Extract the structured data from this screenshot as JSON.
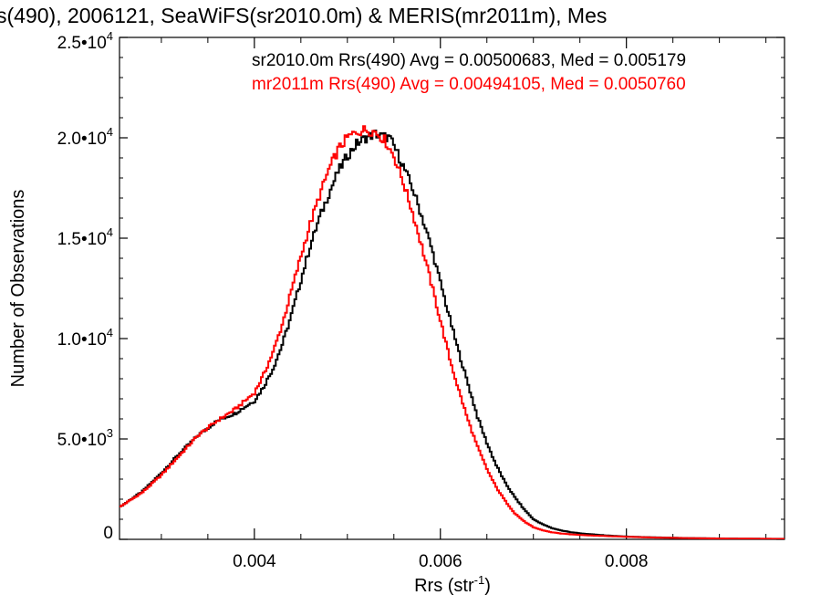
{
  "chart_data": {
    "type": "line",
    "title": "s(490), 2006121, SeaWiFS(sr2010.0m) & MERIS(mr2011m), Mes",
    "xlabel": "Rrs (str",
    "xlabel_sup": "-1",
    "xlabel_tail": ")",
    "ylabel": "Number of Observations",
    "xlim": [
      0.00255,
      0.0097
    ],
    "ylim": [
      0,
      25000
    ],
    "grid": false,
    "x_ticks": [
      {
        "value": 0.004,
        "label": "0.004"
      },
      {
        "value": 0.006,
        "label": "0.006"
      },
      {
        "value": 0.008,
        "label": "0.008"
      }
    ],
    "y_ticks": [
      {
        "value": 0,
        "mant": "0",
        "exp": ""
      },
      {
        "value": 5000,
        "mant": "5.0•10",
        "exp": "3"
      },
      {
        "value": 10000,
        "mant": "1.0•10",
        "exp": "4"
      },
      {
        "value": 15000,
        "mant": "1.5•10",
        "exp": "4"
      },
      {
        "value": 20000,
        "mant": "2.0•10",
        "exp": "4"
      },
      {
        "value": 25000,
        "mant": "2.5•10",
        "exp": "4"
      }
    ],
    "legend_placement": "top-right",
    "legend": [
      "sr2010.0m Rrs(490) Avg = 0.00500683, Med = 0.005179",
      "mr2011m Rrs(490) Avg = 0.00494105, Med = 0.0050760"
    ],
    "series": [
      {
        "color": "#000000",
        "x": [
          0.00255,
          0.0028,
          0.003,
          0.0032,
          0.0034,
          0.0036,
          0.0038,
          0.004,
          0.0041,
          0.0042,
          0.0043,
          0.0044,
          0.0045,
          0.0046,
          0.0047,
          0.0048,
          0.0049,
          0.005,
          0.0051,
          0.0052,
          0.0053,
          0.00535,
          0.0054,
          0.00545,
          0.0055,
          0.0056,
          0.0057,
          0.0058,
          0.0059,
          0.006,
          0.0061,
          0.0062,
          0.0063,
          0.0064,
          0.0065,
          0.0066,
          0.0067,
          0.0068,
          0.0069,
          0.007,
          0.0071,
          0.0072,
          0.0073,
          0.0074,
          0.0075,
          0.0076,
          0.0078,
          0.008,
          0.0082,
          0.0084,
          0.0086,
          0.0088,
          0.009,
          0.0092,
          0.0094,
          0.0097
        ],
        "y": [
          1600,
          2400,
          3300,
          4300,
          5200,
          5900,
          6300,
          6900,
          7600,
          8500,
          9700,
          11200,
          12900,
          14600,
          16000,
          17200,
          18300,
          19100,
          19700,
          20000,
          20200,
          20100,
          20050,
          20000,
          19600,
          18600,
          17500,
          16100,
          14600,
          12800,
          11000,
          9300,
          7700,
          6100,
          4800,
          3700,
          2800,
          2100,
          1500,
          1000,
          750,
          560,
          440,
          360,
          300,
          260,
          190,
          140,
          110,
          90,
          70,
          55,
          45,
          38,
          30,
          25
        ]
      },
      {
        "color": "#ff0000",
        "x": [
          0.00255,
          0.0028,
          0.003,
          0.0032,
          0.0034,
          0.0036,
          0.0038,
          0.004,
          0.0041,
          0.0042,
          0.0043,
          0.0044,
          0.0045,
          0.0046,
          0.0047,
          0.0048,
          0.0049,
          0.005,
          0.0051,
          0.0052,
          0.0053,
          0.0054,
          0.0055,
          0.0056,
          0.0057,
          0.0058,
          0.0059,
          0.006,
          0.0061,
          0.0062,
          0.0063,
          0.0064,
          0.0065,
          0.0066,
          0.0067,
          0.0068,
          0.0069,
          0.007,
          0.0071,
          0.0072,
          0.0073,
          0.0074,
          0.0075,
          0.0076,
          0.0078,
          0.008,
          0.0082,
          0.0084,
          0.0086,
          0.0088,
          0.009,
          0.0092,
          0.0094,
          0.0097
        ],
        "y": [
          1600,
          2350,
          3200,
          4200,
          5200,
          5900,
          6500,
          7300,
          8200,
          9300,
          10700,
          12400,
          14100,
          15700,
          17100,
          18400,
          19400,
          20000,
          20300,
          20400,
          20300,
          19900,
          19100,
          17800,
          16300,
          14600,
          12800,
          10900,
          9000,
          7400,
          5900,
          4600,
          3500,
          2600,
          1900,
          1300,
          900,
          600,
          450,
          350,
          290,
          250,
          220,
          195,
          160,
          130,
          100,
          80,
          65,
          52,
          42,
          34,
          28,
          22
        ]
      }
    ]
  }
}
